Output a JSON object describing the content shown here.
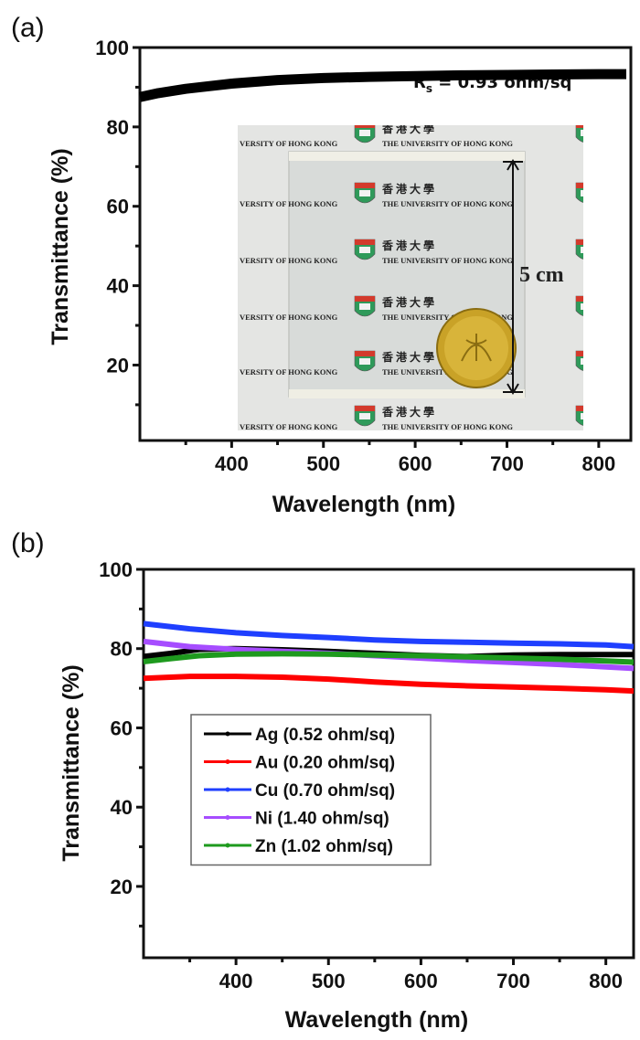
{
  "chart_data": [
    {
      "panel": "(a)",
      "type": "line",
      "title": "",
      "xlabel": "Wavelength (nm)",
      "ylabel": "Transmittance (%)",
      "xlim": [
        300,
        835
      ],
      "ylim": [
        1,
        100
      ],
      "xticks": [
        400,
        500,
        600,
        700,
        800
      ],
      "xminor": [
        350,
        450,
        550,
        650,
        750
      ],
      "yticks": [
        20,
        40,
        60,
        80,
        100
      ],
      "yminor": [
        10,
        30,
        50,
        70,
        90
      ],
      "grid": false,
      "annotation": {
        "main": "R",
        "sub": "s",
        "rest": " = 0.93 ohm/sq"
      },
      "inset_photo": {
        "description": "Photo of transparent film with coin over HKU logo paper",
        "dimension_label": "5 cm",
        "rows": [
          "香 港 大 學",
          "THE UNIVERSITY OF HONG KONG"
        ]
      },
      "series": [
        {
          "name": "Transmittance",
          "color": "#000000",
          "x": [
            300,
            320,
            350,
            400,
            450,
            500,
            550,
            600,
            650,
            700,
            750,
            800,
            830
          ],
          "y": [
            87.5,
            88.5,
            89.6,
            90.9,
            91.8,
            92.3,
            92.6,
            92.8,
            93.0,
            93.1,
            93.2,
            93.3,
            93.3
          ]
        }
      ]
    },
    {
      "panel": "(b)",
      "type": "line",
      "title": "",
      "xlabel": "Wavelength (nm)",
      "ylabel": "Transmittance (%)",
      "xlim": [
        300,
        830
      ],
      "ylim": [
        2,
        100
      ],
      "xticks": [
        400,
        500,
        600,
        700,
        800
      ],
      "xminor": [
        350,
        450,
        550,
        650,
        750
      ],
      "yticks": [
        20,
        40,
        60,
        80,
        100
      ],
      "yminor": [
        10,
        30,
        50,
        70,
        90
      ],
      "grid": false,
      "legend_position": "center-left",
      "series": [
        {
          "name": "Ag (0.52 ohm/sq)",
          "color": "#000000",
          "x": [
            300,
            330,
            360,
            400,
            450,
            500,
            550,
            600,
            650,
            700,
            750,
            800,
            830
          ],
          "y": [
            78.0,
            78.8,
            79.8,
            80.0,
            79.7,
            79.3,
            78.8,
            78.3,
            78.0,
            78.4,
            78.5,
            78.5,
            78.5
          ]
        },
        {
          "name": "Au (0.20 ohm/sq)",
          "color": "#ff0000",
          "x": [
            300,
            350,
            400,
            450,
            500,
            550,
            600,
            650,
            700,
            750,
            800,
            830
          ],
          "y": [
            72.5,
            73.0,
            73.0,
            72.8,
            72.3,
            71.6,
            71.0,
            70.6,
            70.3,
            70.0,
            69.6,
            69.3
          ]
        },
        {
          "name": "Cu (0.70 ohm/sq)",
          "color": "#1f3fff",
          "x": [
            300,
            350,
            400,
            450,
            500,
            550,
            600,
            650,
            700,
            750,
            800,
            830
          ],
          "y": [
            86.3,
            85.0,
            84.0,
            83.3,
            82.8,
            82.2,
            81.8,
            81.6,
            81.4,
            81.2,
            80.9,
            80.5
          ]
        },
        {
          "name": "Ni (1.40 ohm/sq)",
          "color": "#a64dff",
          "x": [
            300,
            350,
            400,
            450,
            500,
            550,
            600,
            650,
            700,
            750,
            800,
            830
          ],
          "y": [
            81.8,
            80.5,
            79.8,
            79.3,
            78.8,
            78.2,
            77.6,
            77.0,
            76.5,
            76.0,
            75.4,
            75.0
          ]
        },
        {
          "name": "Zn (1.02 ohm/sq)",
          "color": "#1e9a1e",
          "x": [
            300,
            330,
            360,
            400,
            450,
            500,
            550,
            600,
            650,
            700,
            750,
            800,
            830
          ],
          "y": [
            76.7,
            77.5,
            78.2,
            78.6,
            78.7,
            78.6,
            78.4,
            78.2,
            77.9,
            77.6,
            77.3,
            76.9,
            76.6
          ]
        }
      ]
    }
  ]
}
